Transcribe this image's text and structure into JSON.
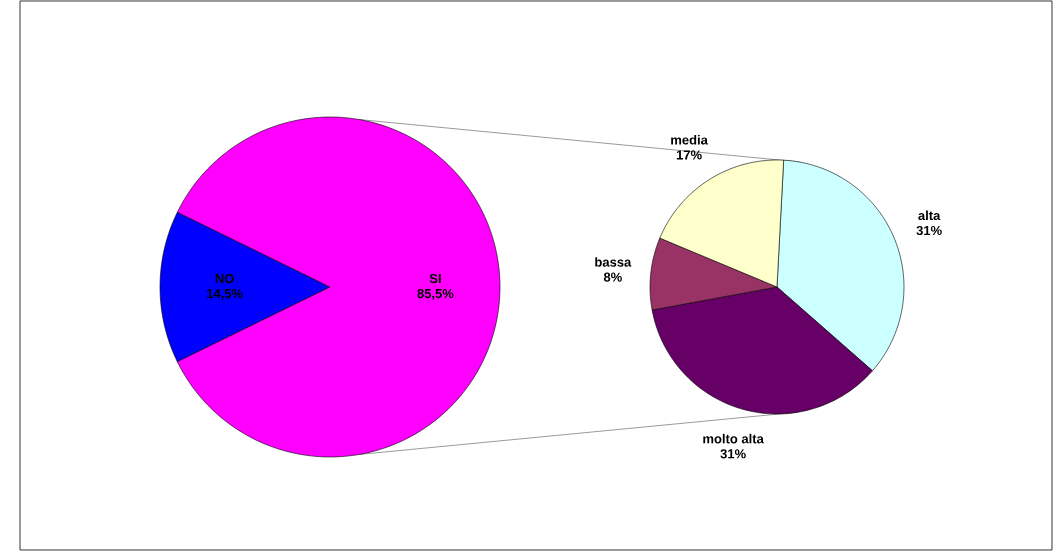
{
  "chart_data": [
    {
      "type": "pie",
      "categories": [
        "NO",
        "SI"
      ],
      "values": [
        14.5,
        85.5
      ],
      "colors": [
        "#0000ff",
        "#ff00ff"
      ],
      "value_labels": [
        "14,5%",
        "85,5%"
      ]
    },
    {
      "type": "pie",
      "categories": [
        "alta",
        "molto alta",
        "bassa",
        "media"
      ],
      "values": [
        31,
        31,
        8,
        17
      ],
      "colors": [
        "#ccffff",
        "#660066",
        "#993366",
        "#ffffcc"
      ],
      "value_labels": [
        "31%",
        "31%",
        "8%",
        "17%"
      ]
    }
  ]
}
